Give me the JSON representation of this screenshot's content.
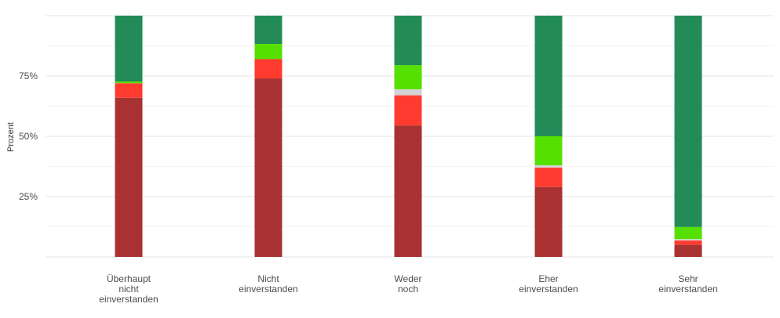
{
  "chart_data": {
    "type": "bar",
    "stacked": true,
    "normalized": true,
    "ylabel": "Prozent",
    "xlabel": "",
    "ylim": [
      0,
      1
    ],
    "yticks": [
      0.25,
      0.5,
      0.75
    ],
    "ytick_labels": [
      "25%",
      "50%",
      "75%"
    ],
    "grid": true,
    "legend": "none",
    "categories": [
      [
        "Überhaupt",
        "nicht",
        "einverstanden"
      ],
      [
        "Nicht",
        "einverstanden"
      ],
      [
        "Weder",
        "noch"
      ],
      [
        "Eher",
        "einverstanden"
      ],
      [
        "Sehr",
        "einverstanden"
      ]
    ],
    "series": [
      {
        "color": "#a83232",
        "values": [
          0.66,
          0.74,
          0.545,
          0.29,
          0.05
        ]
      },
      {
        "color": "#ff3b2f",
        "values": [
          0.06,
          0.08,
          0.125,
          0.08,
          0.018
        ]
      },
      {
        "color": "#d3d3d3",
        "values": [
          0.0,
          0.0,
          0.025,
          0.01,
          0.006
        ]
      },
      {
        "color": "#55e000",
        "values": [
          0.007,
          0.063,
          0.1,
          0.12,
          0.05
        ]
      },
      {
        "color": "#238b57",
        "values": [
          0.273,
          0.117,
          0.205,
          0.5,
          0.876
        ]
      }
    ]
  }
}
